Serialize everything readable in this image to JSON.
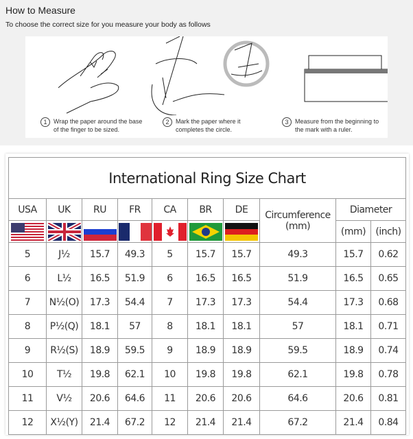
{
  "header": {
    "title": "How to Measure",
    "subtitle": "To choose the correct size for you measure your body as follows"
  },
  "steps": [
    {
      "number": "1",
      "text": "Wrap the paper around the base of the finger to be sized."
    },
    {
      "number": "2",
      "text": "Mark the paper where it completes the circle."
    },
    {
      "number": "3",
      "text": "Measure from the beginning to the mark with a ruler."
    }
  ],
  "chart_data": {
    "type": "table",
    "title": "International Ring Size Chart",
    "columns": [
      "USA",
      "UK",
      "RU",
      "FR",
      "CA",
      "BR",
      "DE",
      "Circumference",
      "Diameter"
    ],
    "circumference_unit": "(mm)",
    "diameter_units": [
      "(mm)",
      "(inch)"
    ],
    "flags": [
      "usa-flag",
      "uk-flag",
      "russia-flag",
      "france-flag",
      "canada-flag",
      "brazil-flag",
      "germany-flag"
    ],
    "rows": [
      [
        "5",
        "J½",
        "15.7",
        "49.3",
        "5",
        "15.7",
        "15.7",
        "49.3",
        "15.7",
        "0.62"
      ],
      [
        "6",
        "L½",
        "16.5",
        "51.9",
        "6",
        "16.5",
        "16.5",
        "51.9",
        "16.5",
        "0.65"
      ],
      [
        "7",
        "N½(O)",
        "17.3",
        "54.4",
        "7",
        "17.3",
        "17.3",
        "54.4",
        "17.3",
        "0.68"
      ],
      [
        "8",
        "P½(Q)",
        "18.1",
        "57",
        "8",
        "18.1",
        "18.1",
        "57",
        "18.1",
        "0.71"
      ],
      [
        "9",
        "R½(S)",
        "18.9",
        "59.5",
        "9",
        "18.9",
        "18.9",
        "59.5",
        "18.9",
        "0.74"
      ],
      [
        "10",
        "T½",
        "19.8",
        "62.1",
        "10",
        "19.8",
        "19.8",
        "62.1",
        "19.8",
        "0.78"
      ],
      [
        "11",
        "V½",
        "20.6",
        "64.6",
        "11",
        "20.6",
        "20.6",
        "64.6",
        "20.6",
        "0.81"
      ],
      [
        "12",
        "X½(Y)",
        "21.4",
        "67.2",
        "12",
        "21.4",
        "21.4",
        "67.2",
        "21.4",
        "0.84"
      ]
    ]
  }
}
